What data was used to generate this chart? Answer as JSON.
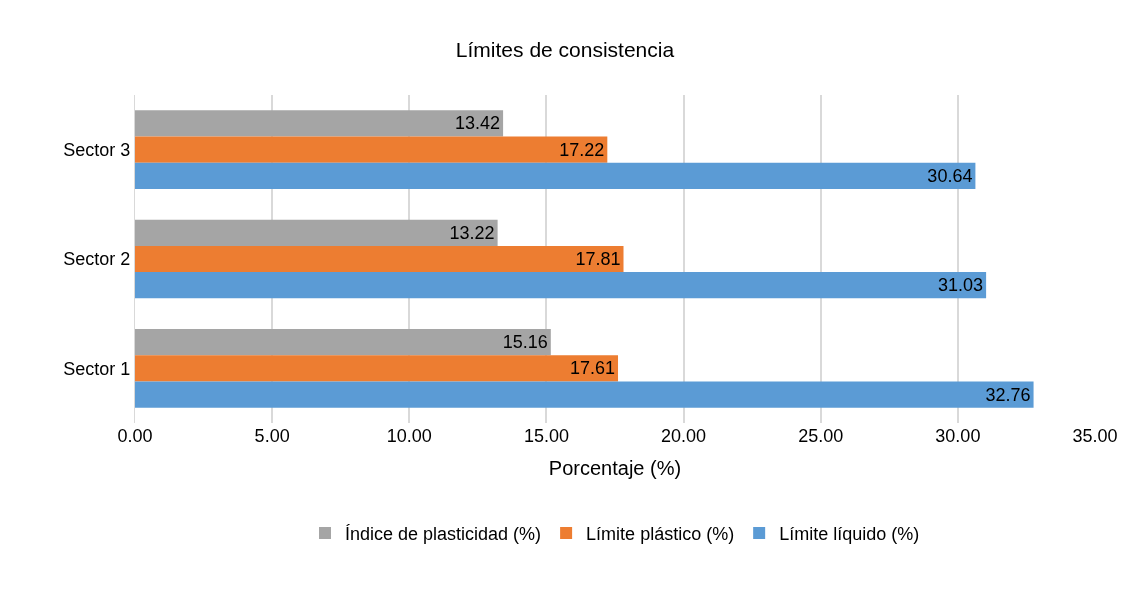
{
  "chart_data": {
    "type": "bar",
    "orientation": "horizontal",
    "title": "Límites de consistencia",
    "xlabel": "Porcentaje (%)",
    "categories": [
      "Sector 3",
      "Sector 2",
      "Sector 1"
    ],
    "series": [
      {
        "name": "Índice de plasticidad (%)",
        "color": "#a5a5a5",
        "values": [
          13.42,
          13.22,
          15.16
        ]
      },
      {
        "name": "Límite plástico (%)",
        "color": "#ed7d31",
        "values": [
          17.22,
          17.81,
          17.61
        ]
      },
      {
        "name": "Límite líquido (%)",
        "color": "#5b9bd5",
        "values": [
          30.64,
          31.03,
          32.76
        ]
      }
    ],
    "xlim": [
      0,
      35
    ],
    "xticks": [
      {
        "value": 0,
        "label": "0.00"
      },
      {
        "value": 5,
        "label": "5.00"
      },
      {
        "value": 10,
        "label": "10.00"
      },
      {
        "value": 15,
        "label": "15.00"
      },
      {
        "value": 20,
        "label": "20.00"
      },
      {
        "value": 25,
        "label": "25.00"
      },
      {
        "value": 30,
        "label": "30.00"
      },
      {
        "value": 35,
        "label": "35.00"
      }
    ],
    "grid": "x",
    "legend": "bottom",
    "data_labels": true
  }
}
